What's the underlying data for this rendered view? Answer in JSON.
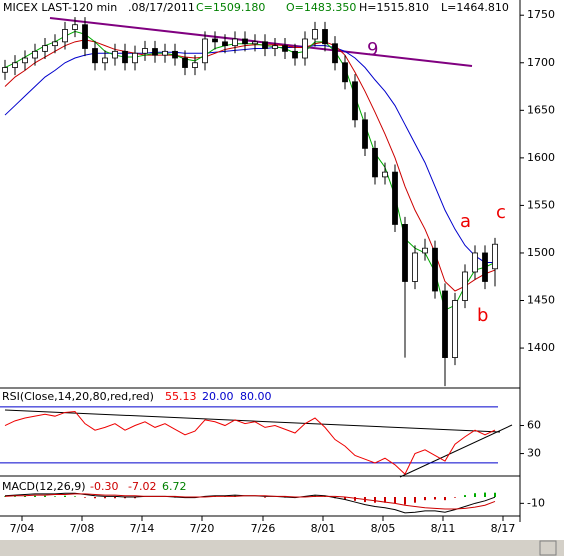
{
  "chart_data": [
    {
      "type": "candlestick",
      "title": "MICEX LAST-120 min",
      "subtitle": ".08/17/2011",
      "header": [
        "C=1509.180",
        "O=1483.350",
        "H=1515.810",
        "L=1464.810"
      ],
      "x": [
        0,
        1,
        2,
        3,
        4,
        5,
        6,
        7,
        8,
        9,
        10,
        11,
        12,
        13,
        14,
        15,
        16,
        17,
        18,
        19,
        20,
        21,
        22,
        23,
        24,
        25,
        26,
        27,
        28,
        29,
        30,
        31,
        32,
        33,
        34,
        35,
        36,
        37,
        38,
        39,
        40,
        41,
        42,
        43,
        44,
        45,
        46,
        47,
        48,
        49
      ],
      "open": [
        1690,
        1695,
        1700,
        1705,
        1712,
        1718,
        1722,
        1735,
        1740,
        1715,
        1700,
        1705,
        1712,
        1700,
        1710,
        1715,
        1708,
        1712,
        1705,
        1695,
        1700,
        1725,
        1722,
        1718,
        1725,
        1720,
        1722,
        1715,
        1718,
        1712,
        1705,
        1725,
        1735,
        1720,
        1700,
        1680,
        1640,
        1610,
        1580,
        1585,
        1530,
        1470,
        1500,
        1505,
        1460,
        1390,
        1450,
        1480,
        1500,
        1483.35
      ],
      "high": [
        1703,
        1708,
        1713,
        1720,
        1726,
        1730,
        1743,
        1748,
        1748,
        1723,
        1713,
        1720,
        1720,
        1718,
        1723,
        1723,
        1720,
        1720,
        1713,
        1708,
        1733,
        1733,
        1730,
        1733,
        1733,
        1730,
        1730,
        1726,
        1726,
        1720,
        1733,
        1743,
        1743,
        1728,
        1708,
        1688,
        1648,
        1618,
        1595,
        1593,
        1538,
        1508,
        1515,
        1513,
        1468,
        1458,
        1488,
        1508,
        1508,
        1515.81
      ],
      "low": [
        1682,
        1687,
        1692,
        1697,
        1704,
        1710,
        1714,
        1727,
        1707,
        1692,
        1692,
        1697,
        1692,
        1692,
        1702,
        1700,
        1700,
        1697,
        1687,
        1687,
        1692,
        1714,
        1710,
        1710,
        1712,
        1712,
        1707,
        1707,
        1704,
        1697,
        1697,
        1717,
        1712,
        1692,
        1672,
        1632,
        1602,
        1572,
        1572,
        1522,
        1390,
        1462,
        1492,
        1452,
        1360,
        1382,
        1442,
        1472,
        1462,
        1464.81
      ],
      "close": [
        1695,
        1700,
        1705,
        1712,
        1718,
        1722,
        1735,
        1740,
        1715,
        1700,
        1705,
        1712,
        1700,
        1710,
        1715,
        1708,
        1712,
        1705,
        1695,
        1700,
        1725,
        1722,
        1718,
        1725,
        1720,
        1722,
        1715,
        1718,
        1712,
        1705,
        1725,
        1735,
        1720,
        1700,
        1680,
        1640,
        1610,
        1580,
        1585,
        1530,
        1470,
        1500,
        1505,
        1460,
        1390,
        1450,
        1480,
        1500,
        1470,
        1509.18
      ],
      "series": [
        {
          "color": "#0000cc",
          "values": [
            1645,
            1655,
            1665,
            1675,
            1685,
            1692,
            1700,
            1705,
            1708,
            1710,
            1710,
            1710,
            1710,
            1710,
            1710,
            1711,
            1711,
            1711,
            1710,
            1710,
            1710,
            1711,
            1712,
            1713,
            1714,
            1715,
            1715,
            1716,
            1716,
            1716,
            1717,
            1718,
            1718,
            1716,
            1712,
            1705,
            1695,
            1682,
            1670,
            1655,
            1635,
            1615,
            1595,
            1570,
            1545,
            1525,
            1508,
            1497,
            1490,
            1490
          ]
        },
        {
          "color": "#cc0000",
          "values": [
            1675,
            1685,
            1692,
            1700,
            1706,
            1712,
            1718,
            1722,
            1724,
            1722,
            1718,
            1714,
            1712,
            1710,
            1708,
            1708,
            1708,
            1708,
            1706,
            1705,
            1706,
            1710,
            1714,
            1716,
            1718,
            1719,
            1719,
            1719,
            1718,
            1716,
            1716,
            1720,
            1722,
            1718,
            1708,
            1690,
            1670,
            1648,
            1625,
            1600,
            1570,
            1545,
            1525,
            1500,
            1470,
            1460,
            1465,
            1472,
            1478,
            1482
          ]
        },
        {
          "color": "#00aa00",
          "values": [
            1695,
            1700,
            1706,
            1712,
            1718,
            1722,
            1728,
            1733,
            1730,
            1722,
            1712,
            1708,
            1706,
            1706,
            1708,
            1710,
            1710,
            1708,
            1704,
            1702,
            1708,
            1715,
            1718,
            1720,
            1720,
            1720,
            1718,
            1717,
            1715,
            1710,
            1712,
            1722,
            1722,
            1712,
            1695,
            1665,
            1635,
            1605,
            1590,
            1560,
            1515,
            1505,
            1500,
            1480,
            1440,
            1445,
            1465,
            1482,
            1485,
            1490
          ]
        }
      ],
      "annotations": [
        "9",
        "a",
        "b",
        "c"
      ],
      "xlim": [
        -0.5,
        51.5
      ],
      "ylim": [
        1358,
        1766
      ],
      "yticks": [
        1400,
        1450,
        1500,
        1550,
        1600,
        1650,
        1700,
        1750
      ]
    },
    {
      "type": "line",
      "title": "RSI(Close,14,20,80,red,red)",
      "header": [
        "55.13",
        "20.00",
        "80.00"
      ],
      "series": [
        {
          "color": "#ee0000",
          "values": [
            60,
            65,
            68,
            70,
            72,
            70,
            74,
            75,
            62,
            55,
            58,
            62,
            55,
            60,
            64,
            58,
            62,
            56,
            50,
            54,
            66,
            64,
            60,
            66,
            62,
            64,
            58,
            60,
            56,
            52,
            62,
            68,
            58,
            45,
            38,
            28,
            24,
            20,
            25,
            18,
            8,
            30,
            34,
            28,
            22,
            40,
            48,
            55,
            50,
            55.13
          ]
        }
      ],
      "levels": [
        20,
        80
      ],
      "level_color": "#0000cc",
      "xlim": [
        -0.5,
        51.5
      ],
      "ylim": [
        6,
        98
      ],
      "yticks": [
        30,
        60
      ]
    },
    {
      "type": "macd",
      "title": "MACD(12,26,9)",
      "header": [
        "-0.30",
        "-7.02",
        "6.72"
      ],
      "series": [
        {
          "color": "#000000",
          "values": [
            2,
            3,
            4,
            5,
            5,
            5,
            6,
            6,
            4,
            2,
            1,
            1,
            0,
            0,
            1,
            1,
            1,
            0,
            -1,
            -1,
            1,
            2,
            2,
            3,
            2,
            2,
            1,
            1,
            0,
            -1,
            1,
            3,
            2,
            -1,
            -4,
            -8,
            -12,
            -15,
            -17,
            -20,
            -25,
            -24,
            -22,
            -22,
            -24,
            -20,
            -15,
            -10,
            -6,
            -0.3
          ]
        },
        {
          "color": "#cc0000",
          "values": [
            1,
            2,
            2,
            3,
            3,
            4,
            4,
            5,
            5,
            4,
            3,
            3,
            2,
            2,
            1,
            1,
            1,
            1,
            0,
            0,
            0,
            1,
            1,
            1,
            2,
            2,
            2,
            1,
            1,
            0,
            0,
            1,
            1,
            1,
            0,
            -2,
            -4,
            -6,
            -8,
            -10,
            -13,
            -15,
            -17,
            -18,
            -19,
            -19,
            -18,
            -16,
            -13,
            -7.02
          ]
        }
      ],
      "histogram": [
        1,
        1,
        2,
        2,
        2,
        1,
        2,
        1,
        -1,
        -2,
        -2,
        -2,
        -2,
        -2,
        0,
        0,
        0,
        -1,
        -1,
        -1,
        1,
        1,
        1,
        2,
        0,
        0,
        -1,
        0,
        -1,
        -1,
        1,
        2,
        1,
        -2,
        -4,
        -6,
        -8,
        -9,
        -9,
        -10,
        -12,
        -9,
        -5,
        -4,
        -5,
        -1,
        3,
        6,
        7,
        6.72
      ],
      "histogram_colors": [
        "#00aa00",
        "#cc0000"
      ],
      "xlim": [
        -0.5,
        51.5
      ],
      "ylim": [
        -30,
        30
      ],
      "yticks": [
        -10
      ],
      "xticks": [
        {
          "value": 1.7,
          "label": "7/04"
        },
        {
          "value": 7.7,
          "label": "7/08"
        },
        {
          "value": 13.7,
          "label": "7/14"
        },
        {
          "value": 19.7,
          "label": "7/20"
        },
        {
          "value": 25.8,
          "label": "7/26"
        },
        {
          "value": 31.8,
          "label": "8/01"
        },
        {
          "value": 37.8,
          "label": "8/05"
        },
        {
          "value": 43.8,
          "label": "8/11"
        },
        {
          "value": 49.8,
          "label": "8/17"
        }
      ]
    }
  ]
}
